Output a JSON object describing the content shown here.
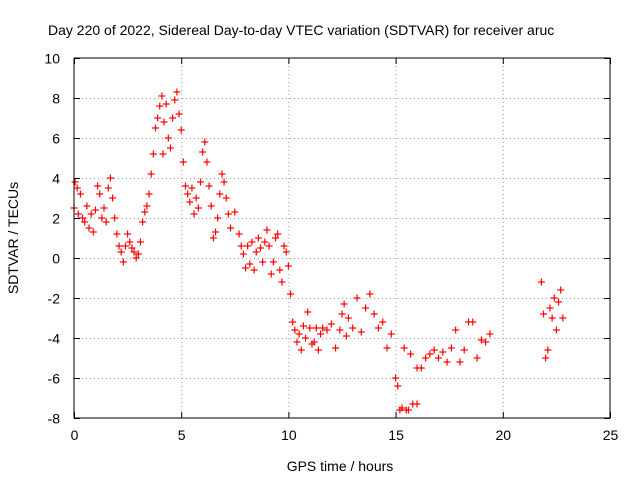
{
  "chart_data": {
    "type": "scatter",
    "title": "Day 220 of 2022, Sidereal Day-to-day VTEC variation (SDTVAR) for receiver aruc",
    "xlabel": "GPS time / hours",
    "ylabel": "SDTVAR / TECUs",
    "xlim": [
      0,
      25
    ],
    "ylim": [
      -8,
      10
    ],
    "xticks": [
      0,
      5,
      10,
      15,
      20,
      25
    ],
    "yticks": [
      -8,
      -6,
      -4,
      -2,
      0,
      2,
      4,
      6,
      8,
      10
    ],
    "grid": true,
    "marker": "+",
    "color": "#ff0000",
    "series": [
      {
        "name": "SDTVAR",
        "points": [
          [
            0.0,
            2.5
          ],
          [
            0.05,
            3.8
          ],
          [
            0.15,
            3.5
          ],
          [
            0.2,
            2.2
          ],
          [
            0.3,
            3.2
          ],
          [
            0.4,
            2.0
          ],
          [
            0.5,
            1.8
          ],
          [
            0.6,
            2.6
          ],
          [
            0.7,
            1.5
          ],
          [
            0.8,
            2.2
          ],
          [
            0.9,
            1.3
          ],
          [
            1.0,
            2.4
          ],
          [
            1.1,
            3.6
          ],
          [
            1.2,
            3.2
          ],
          [
            1.3,
            2.0
          ],
          [
            1.4,
            2.5
          ],
          [
            1.5,
            1.8
          ],
          [
            1.6,
            3.5
          ],
          [
            1.7,
            4.0
          ],
          [
            1.8,
            3.0
          ],
          [
            1.9,
            2.0
          ],
          [
            2.0,
            1.2
          ],
          [
            2.1,
            0.6
          ],
          [
            2.2,
            0.3
          ],
          [
            2.3,
            -0.2
          ],
          [
            2.4,
            0.6
          ],
          [
            2.5,
            1.2
          ],
          [
            2.6,
            0.8
          ],
          [
            2.7,
            0.5
          ],
          [
            2.8,
            0.3
          ],
          [
            2.9,
            0.0
          ],
          [
            3.0,
            0.2
          ],
          [
            3.1,
            0.8
          ],
          [
            3.2,
            1.8
          ],
          [
            3.3,
            2.3
          ],
          [
            3.4,
            2.6
          ],
          [
            3.5,
            3.2
          ],
          [
            3.6,
            4.2
          ],
          [
            3.7,
            5.2
          ],
          [
            3.8,
            6.5
          ],
          [
            3.9,
            7.0
          ],
          [
            4.0,
            7.6
          ],
          [
            4.1,
            8.1
          ],
          [
            4.15,
            5.2
          ],
          [
            4.2,
            6.8
          ],
          [
            4.3,
            7.7
          ],
          [
            4.4,
            6.0
          ],
          [
            4.5,
            5.5
          ],
          [
            4.6,
            7.0
          ],
          [
            4.7,
            7.9
          ],
          [
            4.8,
            8.3
          ],
          [
            4.9,
            7.2
          ],
          [
            5.0,
            6.4
          ],
          [
            5.1,
            4.8
          ],
          [
            5.2,
            3.6
          ],
          [
            5.3,
            3.2
          ],
          [
            5.4,
            2.8
          ],
          [
            5.5,
            3.5
          ],
          [
            5.6,
            2.2
          ],
          [
            5.7,
            3.0
          ],
          [
            5.8,
            2.5
          ],
          [
            5.9,
            3.8
          ],
          [
            6.0,
            5.3
          ],
          [
            6.1,
            5.8
          ],
          [
            6.2,
            4.8
          ],
          [
            6.3,
            3.6
          ],
          [
            6.4,
            2.6
          ],
          [
            6.5,
            1.0
          ],
          [
            6.6,
            1.3
          ],
          [
            6.7,
            2.0
          ],
          [
            6.8,
            3.2
          ],
          [
            6.9,
            4.2
          ],
          [
            7.0,
            3.8
          ],
          [
            7.1,
            3.0
          ],
          [
            7.2,
            2.2
          ],
          [
            7.3,
            1.5
          ],
          [
            7.5,
            2.3
          ],
          [
            7.7,
            1.2
          ],
          [
            7.8,
            0.6
          ],
          [
            7.9,
            0.2
          ],
          [
            8.0,
            -0.5
          ],
          [
            8.1,
            0.6
          ],
          [
            8.2,
            -0.3
          ],
          [
            8.3,
            0.8
          ],
          [
            8.4,
            -0.6
          ],
          [
            8.5,
            0.3
          ],
          [
            8.6,
            1.0
          ],
          [
            8.7,
            0.5
          ],
          [
            8.8,
            -0.2
          ],
          [
            8.9,
            0.8
          ],
          [
            9.0,
            1.4
          ],
          [
            9.1,
            0.6
          ],
          [
            9.2,
            -0.8
          ],
          [
            9.3,
            -0.2
          ],
          [
            9.4,
            1.0
          ],
          [
            9.5,
            1.2
          ],
          [
            9.6,
            -0.6
          ],
          [
            9.7,
            -1.2
          ],
          [
            9.8,
            0.6
          ],
          [
            9.9,
            0.3
          ],
          [
            10.0,
            -0.4
          ],
          [
            10.1,
            -1.8
          ],
          [
            10.2,
            -3.2
          ],
          [
            10.3,
            -3.6
          ],
          [
            10.4,
            -4.2
          ],
          [
            10.5,
            -3.8
          ],
          [
            10.6,
            -4.6
          ],
          [
            10.7,
            -3.4
          ],
          [
            10.8,
            -4.0
          ],
          [
            10.9,
            -2.7
          ],
          [
            11.0,
            -3.5
          ],
          [
            11.1,
            -4.3
          ],
          [
            11.2,
            -4.2
          ],
          [
            11.3,
            -3.5
          ],
          [
            11.4,
            -4.6
          ],
          [
            11.5,
            -3.8
          ],
          [
            11.6,
            -3.5
          ],
          [
            11.8,
            -3.6
          ],
          [
            12.0,
            -3.3
          ],
          [
            12.2,
            -4.5
          ],
          [
            12.4,
            -3.6
          ],
          [
            12.5,
            -2.8
          ],
          [
            12.6,
            -2.3
          ],
          [
            12.7,
            -3.9
          ],
          [
            12.8,
            -3.0
          ],
          [
            13.0,
            -3.5
          ],
          [
            13.2,
            -2.0
          ],
          [
            13.4,
            -3.7
          ],
          [
            13.6,
            -2.5
          ],
          [
            13.8,
            -1.8
          ],
          [
            14.0,
            -2.8
          ],
          [
            14.2,
            -3.5
          ],
          [
            14.4,
            -3.2
          ],
          [
            14.6,
            -4.5
          ],
          [
            14.8,
            -3.8
          ],
          [
            15.0,
            -6.0
          ],
          [
            15.1,
            -6.4
          ],
          [
            15.2,
            -7.6
          ],
          [
            15.3,
            -7.5
          ],
          [
            15.4,
            -4.5
          ],
          [
            15.5,
            -7.6
          ],
          [
            15.6,
            -7.6
          ],
          [
            15.8,
            -7.3
          ],
          [
            16.0,
            -7.3
          ],
          [
            15.7,
            -4.8
          ],
          [
            16.0,
            -5.5
          ],
          [
            16.2,
            -5.5
          ],
          [
            16.4,
            -5.0
          ],
          [
            16.6,
            -4.8
          ],
          [
            16.8,
            -4.6
          ],
          [
            17.0,
            -5.0
          ],
          [
            17.2,
            -4.7
          ],
          [
            17.4,
            -5.2
          ],
          [
            17.6,
            -4.5
          ],
          [
            17.8,
            -3.6
          ],
          [
            18.0,
            -5.2
          ],
          [
            18.2,
            -4.6
          ],
          [
            18.4,
            -3.2
          ],
          [
            18.6,
            -3.2
          ],
          [
            18.8,
            -5.0
          ],
          [
            19.0,
            -4.1
          ],
          [
            19.2,
            -4.2
          ],
          [
            19.4,
            -3.8
          ],
          [
            21.8,
            -1.2
          ],
          [
            21.9,
            -2.8
          ],
          [
            22.0,
            -5.0
          ],
          [
            22.1,
            -4.6
          ],
          [
            22.2,
            -2.5
          ],
          [
            22.3,
            -3.0
          ],
          [
            22.4,
            -2.0
          ],
          [
            22.5,
            -3.6
          ],
          [
            22.6,
            -2.2
          ],
          [
            22.7,
            -1.6
          ],
          [
            22.8,
            -3.0
          ]
        ]
      }
    ]
  }
}
